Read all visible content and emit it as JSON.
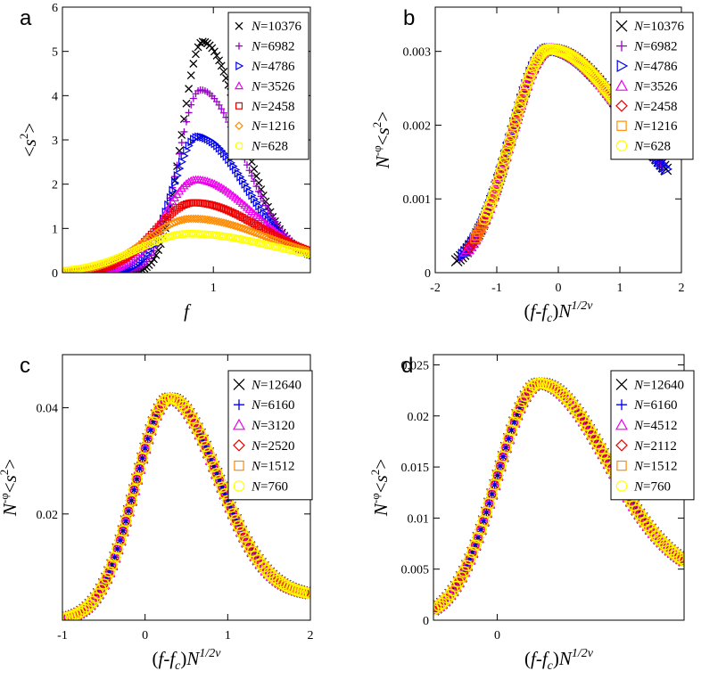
{
  "figure": {
    "panels": [
      "a",
      "b",
      "c",
      "d"
    ]
  },
  "chart_data": [
    {
      "panel": "a",
      "type": "scatter",
      "xlabel": "f",
      "ylabel": "<s²>",
      "xlim": [
        0.3,
        1.45
      ],
      "ylim": [
        0,
        6
      ],
      "xticks": [
        1
      ],
      "yticks": [
        0,
        1,
        2,
        3,
        4,
        5,
        6
      ],
      "legend_position": "top-right",
      "model": "peak",
      "series": [
        {
          "name": "N=10376",
          "N": 10376,
          "marker": "x",
          "color": "#000000",
          "peak": 5.22,
          "x_peak": 0.95,
          "wl": 0.095,
          "wr": 0.18,
          "yr": 0.3
        },
        {
          "name": "N=6982",
          "N": 6982,
          "marker": "plus",
          "color": "#9900cc",
          "peak": 4.13,
          "x_peak": 0.94,
          "wl": 0.105,
          "wr": 0.2,
          "yr": 0.3
        },
        {
          "name": "N=4786",
          "N": 4786,
          "marker": "triangle-right",
          "color": "#0000ee",
          "peak": 3.07,
          "x_peak": 0.93,
          "wl": 0.12,
          "wr": 0.22,
          "yr": 0.25
        },
        {
          "name": "N=3526",
          "N": 3526,
          "marker": "triangle-up",
          "color": "#ee00ee",
          "peak": 2.1,
          "x_peak": 0.92,
          "wl": 0.15,
          "wr": 0.26,
          "yr": 0.25
        },
        {
          "name": "N=2458",
          "N": 2458,
          "marker": "square",
          "color": "#ee0000",
          "peak": 1.58,
          "x_peak": 0.91,
          "wl": 0.18,
          "wr": 0.3,
          "yr": 0.22
        },
        {
          "name": "N=1216",
          "N": 1216,
          "marker": "diamond",
          "color": "#ff8c00",
          "peak": 1.22,
          "x_peak": 0.9,
          "wl": 0.21,
          "wr": 0.34,
          "yr": 0.2
        },
        {
          "name": "N=628",
          "N": 628,
          "marker": "circle",
          "color": "#ffff00",
          "peak": 0.88,
          "x_peak": 0.89,
          "wl": 0.24,
          "wr": 0.38,
          "yr": 0.18
        }
      ]
    },
    {
      "panel": "b",
      "type": "scatter",
      "xlabel": "(f-f_c)N^{1/2ν}",
      "ylabel": "N^{-φ}<s²>",
      "xlim": [
        -2,
        2
      ],
      "ylim": [
        0,
        0.0036
      ],
      "xticks": [
        -2,
        -1,
        0,
        1,
        2
      ],
      "yticks": [
        0,
        0.001,
        0.002,
        0.003
      ],
      "legend_position": "top-right",
      "model": "collapse",
      "curve": {
        "peak": 0.00303,
        "x_peak": -0.15,
        "wl": 0.62,
        "wr": 1.3,
        "y_end": 0.00055
      },
      "series": [
        {
          "name": "N=10376",
          "N": 10376,
          "marker": "x",
          "color": "#000000",
          "xmin": -1.65,
          "xmax": 1.75
        },
        {
          "name": "N=6982",
          "N": 6982,
          "marker": "plus",
          "color": "#9900cc",
          "xmin": -1.6,
          "xmax": 1.7
        },
        {
          "name": "N=4786",
          "N": 4786,
          "marker": "triangle-right",
          "color": "#0000ee",
          "xmin": -1.55,
          "xmax": 1.75
        },
        {
          "name": "N=3526",
          "N": 3526,
          "marker": "triangle-up",
          "color": "#ee00ee",
          "xmin": -1.5,
          "xmax": 1.55
        },
        {
          "name": "N=2458",
          "N": 2458,
          "marker": "diamond",
          "color": "#ee0000",
          "xmin": -1.45,
          "xmax": 1.4
        },
        {
          "name": "N=1216",
          "N": 1216,
          "marker": "square",
          "color": "#ff8c00",
          "xmin": -1.35,
          "xmax": 1.25
        },
        {
          "name": "N=628",
          "N": 628,
          "marker": "circle",
          "color": "#ffff00",
          "xmin": -1.2,
          "xmax": 1.1
        }
      ]
    },
    {
      "panel": "c",
      "type": "scatter",
      "xlabel": "(f-f_c)N^{1/2ν}",
      "ylabel": "N^{-φ}<s²>",
      "xlim": [
        -1,
        2
      ],
      "ylim": [
        0,
        0.05
      ],
      "xticks": [
        -1,
        0,
        1,
        2
      ],
      "yticks": [
        0.02,
        0.04
      ],
      "ytick_labels": [
        "0.02",
        "0.04"
      ],
      "legend_position": "top-right",
      "model": "collapse",
      "curve": {
        "peak": 0.0418,
        "x_peak": 0.3,
        "wl": 0.42,
        "wr": 0.58,
        "y_end": 0.0045
      },
      "series": [
        {
          "name": "N=12640",
          "N": 12640,
          "marker": "x",
          "color": "#000000",
          "xmin": -1,
          "xmax": 2
        },
        {
          "name": "N=6160",
          "N": 6160,
          "marker": "plus",
          "color": "#0000ee",
          "xmin": -1,
          "xmax": 2
        },
        {
          "name": "N=3120",
          "N": 3120,
          "marker": "triangle-up",
          "color": "#ee00ee",
          "xmin": -1,
          "xmax": 2
        },
        {
          "name": "N=2520",
          "N": 2520,
          "marker": "diamond",
          "color": "#ee0000",
          "xmin": -1,
          "xmax": 2
        },
        {
          "name": "N=1512",
          "N": 1512,
          "marker": "square",
          "color": "#ff8c00",
          "xmin": -1,
          "xmax": 2
        },
        {
          "name": "N=760",
          "N": 760,
          "marker": "circle",
          "color": "#ffff00",
          "xmin": -1,
          "xmax": 2
        }
      ]
    },
    {
      "panel": "d",
      "type": "scatter",
      "xlabel": "(f-f_c)N^{1/2ν}",
      "ylabel": "N^{-φ}<s²>",
      "xlim": [
        -0.75,
        2.2
      ],
      "ylim": [
        0,
        0.026
      ],
      "xticks": [
        0
      ],
      "yticks": [
        0,
        0.005,
        0.01,
        0.015,
        0.02,
        0.025
      ],
      "legend_position": "top-right",
      "model": "collapse",
      "curve": {
        "peak": 0.0232,
        "x_peak": 0.5,
        "wl": 0.5,
        "wr": 0.8,
        "y_end": 0.0038
      },
      "series": [
        {
          "name": "N=12640",
          "N": 12640,
          "marker": "x",
          "color": "#000000",
          "xmin": -0.75,
          "xmax": 2.2
        },
        {
          "name": "N=6160",
          "N": 6160,
          "marker": "plus",
          "color": "#0000ee",
          "xmin": -0.75,
          "xmax": 2.2
        },
        {
          "name": "N=4512",
          "N": 4512,
          "marker": "triangle-up",
          "color": "#ee00ee",
          "xmin": -0.75,
          "xmax": 2.2
        },
        {
          "name": "N=2112",
          "N": 2112,
          "marker": "diamond",
          "color": "#ee0000",
          "xmin": -0.75,
          "xmax": 2.2
        },
        {
          "name": "N=1512",
          "N": 1512,
          "marker": "square",
          "color": "#ff8c00",
          "xmin": -0.75,
          "xmax": 2.2
        },
        {
          "name": "N=760",
          "N": 760,
          "marker": "circle",
          "color": "#ffff00",
          "xmin": -0.75,
          "xmax": 2.2
        }
      ]
    }
  ]
}
